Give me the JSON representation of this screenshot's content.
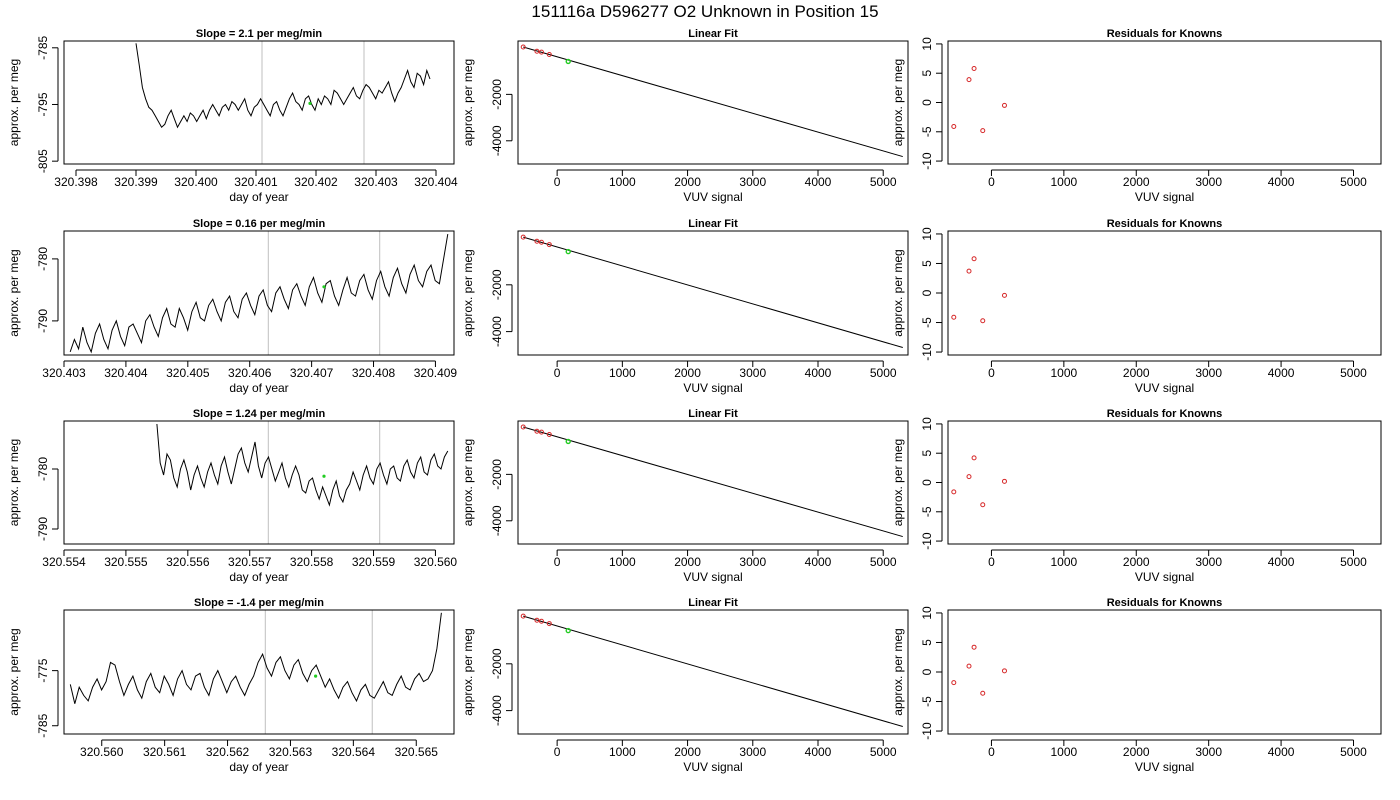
{
  "figure": {
    "title": "151116a      D596277   O2 Unknown in Position  15"
  },
  "chart_data": [
    {
      "type": "line",
      "title": "Slope =  2.1  per meg/min",
      "xlabel": "day of year",
      "ylabel": "approx. per meg",
      "xlim": [
        320.3978,
        320.4043
      ],
      "ylim": [
        -805.5,
        -783.8
      ],
      "xticks": [
        "320.398",
        "320.399",
        "320.400",
        "320.401",
        "320.402",
        "320.403",
        "320.404"
      ],
      "yticks": [
        "-785",
        "-795",
        "-805"
      ],
      "vlines": [
        320.4011,
        320.4028
      ],
      "x_start": 320.399,
      "x_end": 320.4039,
      "series": [
        {
          "values": [
            -784.2,
            -788.0,
            -792.0,
            -794.0,
            -795.5,
            -796.0,
            -797.0,
            -798.0,
            -799.0,
            -798.5,
            -797.0,
            -796.0,
            -797.5,
            -799.0,
            -798.0,
            -797.0,
            -798.0,
            -796.5,
            -797.0,
            -798.0,
            -797.0,
            -796.0,
            -797.5,
            -796.0,
            -795.0,
            -796.0,
            -797.0,
            -795.5,
            -795.0,
            -796.0,
            -794.5,
            -795.0,
            -796.0,
            -795.0,
            -794.0,
            -796.0,
            -797.0,
            -795.5,
            -795.0,
            -794.0,
            -795.0,
            -796.0,
            -797.0,
            -795.0,
            -794.5,
            -796.0,
            -797.0,
            -795.5,
            -794.0,
            -793.0,
            -794.5,
            -795.0,
            -796.0,
            -794.0,
            -793.5,
            -795.0,
            -796.0,
            -794.0,
            -795.0,
            -793.5,
            -794.0,
            -795.0,
            -792.5,
            -793.0,
            -794.0,
            -795.0,
            -794.0,
            -793.0,
            -792.0,
            -793.5,
            -794.0,
            -792.5,
            -791.5,
            -792.0,
            -793.0,
            -794.0,
            -792.5,
            -793.0,
            -792.0,
            -791.0,
            -793.0,
            -794.5,
            -793.0,
            -792.0,
            -790.5,
            -789.0,
            -791.0,
            -792.0,
            -789.5,
            -790.0,
            -791.5,
            -789.0,
            -790.5
          ]
        },
        {
          "name": "",
          "values": []
        }
      ],
      "highlight": {
        "x": 320.4019,
        "y": -794.8
      }
    },
    {
      "type": "scatter",
      "title": "Linear Fit",
      "xlabel": "VUV signal",
      "ylabel": "approx. per meg",
      "xlim": [
        -600,
        5380
      ],
      "ylim": [
        -5000,
        300
      ],
      "xticks": [
        0,
        1000,
        2000,
        3000,
        4000,
        5000
      ],
      "yticks": [
        -4000,
        -2000
      ],
      "points": [
        [
          -520,
          40
        ],
        [
          -310,
          -140
        ],
        [
          -240,
          -180
        ],
        [
          -120,
          -280
        ]
      ],
      "highlight": {
        "x": 170,
        "y": -580
      },
      "fit_line": {
        "x1": -520,
        "y1": 40,
        "x2": 5300,
        "y2": -4680
      }
    },
    {
      "type": "scatter",
      "title": "Residuals for Knowns",
      "xlabel": "VUV signal",
      "ylabel": "approx. per meg",
      "xlim": [
        -600,
        5380
      ],
      "ylim": [
        -10.5,
        10.5
      ],
      "xticks": [
        0,
        1000,
        2000,
        3000,
        4000,
        5000
      ],
      "yticks": [
        -10,
        -5,
        0,
        5,
        10
      ],
      "points": [
        [
          -520,
          -4.1
        ],
        [
          -310,
          3.9
        ],
        [
          -240,
          5.8
        ],
        [
          -120,
          -4.8
        ],
        [
          180,
          -0.5
        ]
      ]
    },
    {
      "type": "line",
      "title": "Slope =  0.16  per meg/min",
      "xlabel": "day of year",
      "ylabel": "approx. per meg",
      "xlim": [
        320.403,
        320.4093
      ],
      "ylim": [
        -795.5,
        -775.5
      ],
      "xticks": [
        "320.403",
        "320.404",
        "320.405",
        "320.406",
        "320.407",
        "320.408",
        "320.409"
      ],
      "yticks": [
        "-780",
        "-790"
      ],
      "vlines": [
        320.4063,
        320.4081
      ],
      "x_start": 320.4031,
      "x_end": 320.4092,
      "series": [
        {
          "values": [
            -795.0,
            -793.0,
            -794.5,
            -791.0,
            -793.5,
            -795.0,
            -792.0,
            -790.5,
            -793.0,
            -794.5,
            -791.5,
            -790.0,
            -792.5,
            -794.0,
            -791.0,
            -790.5,
            -792.0,
            -793.5,
            -790.0,
            -789.0,
            -791.0,
            -792.5,
            -789.5,
            -788.0,
            -790.5,
            -791.0,
            -788.0,
            -789.5,
            -791.5,
            -788.5,
            -787.0,
            -789.5,
            -790.0,
            -787.5,
            -786.5,
            -788.5,
            -790.0,
            -787.0,
            -786.0,
            -788.5,
            -789.5,
            -786.5,
            -785.5,
            -787.5,
            -789.0,
            -786.0,
            -785.0,
            -787.5,
            -788.5,
            -785.5,
            -784.5,
            -786.5,
            -788.0,
            -785.0,
            -784.0,
            -786.0,
            -787.5,
            -784.5,
            -783.0,
            -785.5,
            -787.0,
            -784.0,
            -783.5,
            -786.0,
            -787.5,
            -785.0,
            -783.0,
            -785.5,
            -786.0,
            -783.5,
            -782.5,
            -785.0,
            -786.5,
            -783.5,
            -782.0,
            -784.5,
            -786.0,
            -783.0,
            -781.5,
            -784.0,
            -785.5,
            -782.5,
            -781.0,
            -783.5,
            -784.5,
            -782.0,
            -781.0,
            -783.5,
            -784.0,
            -780.0,
            -776.0
          ]
        },
        {
          "name": "",
          "values": []
        }
      ],
      "highlight": {
        "x": 320.4072,
        "y": -784.5
      }
    },
    {
      "type": "scatter",
      "title": "Linear Fit",
      "xlabel": "VUV signal",
      "ylabel": "approx. per meg",
      "xlim": [
        -600,
        5380
      ],
      "ylim": [
        -5000,
        300
      ],
      "xticks": [
        0,
        1000,
        2000,
        3000,
        4000,
        5000
      ],
      "yticks": [
        -4000,
        -2000
      ],
      "points": [
        [
          -520,
          40
        ],
        [
          -310,
          -140
        ],
        [
          -240,
          -180
        ],
        [
          -120,
          -280
        ]
      ],
      "highlight": {
        "x": 170,
        "y": -580
      },
      "fit_line": {
        "x1": -520,
        "y1": 40,
        "x2": 5300,
        "y2": -4680
      }
    },
    {
      "type": "scatter",
      "title": "Residuals for Knowns",
      "xlabel": "VUV signal",
      "ylabel": "approx. per meg",
      "xlim": [
        -600,
        5380
      ],
      "ylim": [
        -10.5,
        10.5
      ],
      "xticks": [
        0,
        1000,
        2000,
        3000,
        4000,
        5000
      ],
      "yticks": [
        -10,
        -5,
        0,
        5,
        10
      ],
      "points": [
        [
          -520,
          -4.1
        ],
        [
          -310,
          3.7
        ],
        [
          -240,
          5.8
        ],
        [
          -120,
          -4.7
        ],
        [
          180,
          -0.4
        ]
      ]
    },
    {
      "type": "line",
      "title": "Slope =  1.24  per meg/min",
      "xlabel": "day of year",
      "ylabel": "approx. per meg",
      "xlim": [
        320.554,
        320.5603
      ],
      "ylim": [
        -792.5,
        -772.0
      ],
      "xticks": [
        "320.554",
        "320.555",
        "320.556",
        "320.557",
        "320.558",
        "320.559",
        "320.560"
      ],
      "yticks": [
        "-780",
        "-790"
      ],
      "vlines": [
        320.5573,
        320.5591
      ],
      "x_start": 320.5555,
      "x_end": 320.5602,
      "series": [
        {
          "values": [
            -772.5,
            -779.0,
            -781.0,
            -777.5,
            -778.5,
            -781.5,
            -783.0,
            -780.0,
            -778.5,
            -780.5,
            -783.5,
            -781.0,
            -779.5,
            -781.5,
            -783.0,
            -780.5,
            -779.0,
            -781.0,
            -782.5,
            -779.5,
            -778.0,
            -780.5,
            -782.5,
            -780.0,
            -777.5,
            -776.5,
            -779.0,
            -780.5,
            -778.0,
            -775.5,
            -779.5,
            -781.5,
            -779.0,
            -778.0,
            -780.0,
            -782.0,
            -780.5,
            -779.0,
            -781.5,
            -783.0,
            -781.0,
            -779.5,
            -781.0,
            -783.5,
            -784.0,
            -782.0,
            -781.5,
            -783.5,
            -785.0,
            -783.0,
            -784.5,
            -786.0,
            -783.5,
            -782.0,
            -784.5,
            -785.5,
            -783.5,
            -782.5,
            -780.5,
            -782.0,
            -783.5,
            -781.0,
            -779.5,
            -781.5,
            -782.5,
            -780.0,
            -779.0,
            -781.0,
            -782.5,
            -780.0,
            -779.5,
            -781.5,
            -782.0,
            -779.5,
            -778.5,
            -780.5,
            -781.5,
            -779.0,
            -778.0,
            -780.5,
            -781.0,
            -778.5,
            -777.5,
            -779.5,
            -780.0,
            -778.0,
            -777.0
          ]
        },
        {
          "name": "",
          "values": []
        }
      ],
      "highlight": {
        "x": 320.5582,
        "y": -781.2
      }
    },
    {
      "type": "scatter",
      "title": "Linear Fit",
      "xlabel": "VUV signal",
      "ylabel": "approx. per meg",
      "xlim": [
        -600,
        5380
      ],
      "ylim": [
        -5000,
        300
      ],
      "xticks": [
        0,
        1000,
        2000,
        3000,
        4000,
        5000
      ],
      "yticks": [
        -4000,
        -2000
      ],
      "points": [
        [
          -520,
          40
        ],
        [
          -310,
          -140
        ],
        [
          -240,
          -180
        ],
        [
          -120,
          -280
        ]
      ],
      "highlight": {
        "x": 170,
        "y": -580
      },
      "fit_line": {
        "x1": -520,
        "y1": 40,
        "x2": 5300,
        "y2": -4680
      }
    },
    {
      "type": "scatter",
      "title": "Residuals for Knowns",
      "xlabel": "VUV signal",
      "ylabel": "approx. per meg",
      "xlim": [
        -600,
        5380
      ],
      "ylim": [
        -10.5,
        10.5
      ],
      "xticks": [
        0,
        1000,
        2000,
        3000,
        4000,
        5000
      ],
      "yticks": [
        -10,
        -5,
        0,
        5,
        10
      ],
      "points": [
        [
          -520,
          -1.6
        ],
        [
          -310,
          1.0
        ],
        [
          -240,
          4.2
        ],
        [
          -120,
          -3.8
        ],
        [
          180,
          0.2
        ]
      ]
    },
    {
      "type": "line",
      "title": "Slope =  -1.4  per meg/min",
      "xlabel": "day of year",
      "ylabel": "approx. per meg",
      "xlim": [
        320.5594,
        320.5656
      ],
      "ylim": [
        -786.5,
        -764.0
      ],
      "xticks": [
        "320.560",
        "320.561",
        "320.562",
        "320.563",
        "320.564",
        "320.565"
      ],
      "yticks": [
        "-775",
        "-785"
      ],
      "vlines": [
        320.5626,
        320.5643
      ],
      "x_start": 320.5595,
      "x_end": 320.5654,
      "series": [
        {
          "values": [
            -777.5,
            -781.0,
            -778.0,
            -779.5,
            -780.5,
            -778.0,
            -776.5,
            -778.5,
            -777.0,
            -773.5,
            -774.0,
            -777.0,
            -779.5,
            -777.5,
            -776.0,
            -778.5,
            -780.0,
            -777.0,
            -775.5,
            -778.0,
            -779.0,
            -776.0,
            -777.5,
            -779.5,
            -776.5,
            -775.0,
            -777.5,
            -778.5,
            -776.0,
            -775.5,
            -778.0,
            -779.5,
            -776.5,
            -775.0,
            -777.0,
            -779.0,
            -777.0,
            -776.0,
            -778.0,
            -779.5,
            -777.5,
            -776.0,
            -773.5,
            -772.0,
            -774.5,
            -776.0,
            -773.5,
            -772.5,
            -775.0,
            -776.5,
            -774.0,
            -773.0,
            -775.5,
            -777.0,
            -775.0,
            -774.0,
            -776.0,
            -778.0,
            -776.5,
            -778.5,
            -780.0,
            -778.0,
            -777.0,
            -779.0,
            -780.5,
            -778.5,
            -777.5,
            -779.5,
            -780.0,
            -778.5,
            -777.0,
            -779.0,
            -779.5,
            -777.5,
            -776.0,
            -778.0,
            -778.5,
            -776.5,
            -775.5,
            -777.0,
            -776.5,
            -775.0,
            -771.0,
            -764.5
          ]
        },
        {
          "name": "",
          "values": []
        }
      ],
      "highlight": {
        "x": 320.5634,
        "y": -776.0
      }
    },
    {
      "type": "scatter",
      "title": "Linear Fit",
      "xlabel": "VUV signal",
      "ylabel": "approx. per meg",
      "xlim": [
        -600,
        5380
      ],
      "ylim": [
        -5000,
        300
      ],
      "xticks": [
        0,
        1000,
        2000,
        3000,
        4000,
        5000
      ],
      "yticks": [
        -4000,
        -2000
      ],
      "points": [
        [
          -520,
          40
        ],
        [
          -310,
          -140
        ],
        [
          -240,
          -180
        ],
        [
          -120,
          -280
        ]
      ],
      "highlight": {
        "x": 170,
        "y": -580
      },
      "fit_line": {
        "x1": -520,
        "y1": 40,
        "x2": 5300,
        "y2": -4680
      }
    },
    {
      "type": "scatter",
      "title": "Residuals for Knowns",
      "xlabel": "VUV signal",
      "ylabel": "approx. per meg",
      "xlim": [
        -600,
        5380
      ],
      "ylim": [
        -10.5,
        10.5
      ],
      "xticks": [
        0,
        1000,
        2000,
        3000,
        4000,
        5000
      ],
      "yticks": [
        -10,
        -5,
        0,
        5,
        10
      ],
      "points": [
        [
          -520,
          -1.8
        ],
        [
          -310,
          1.0
        ],
        [
          -240,
          4.2
        ],
        [
          -120,
          -3.6
        ],
        [
          180,
          0.2
        ]
      ]
    }
  ],
  "colors": {
    "line": "#000000",
    "grid_vline": "#bfbfbf",
    "point": "#d62728",
    "highlight": "#22cc22"
  }
}
